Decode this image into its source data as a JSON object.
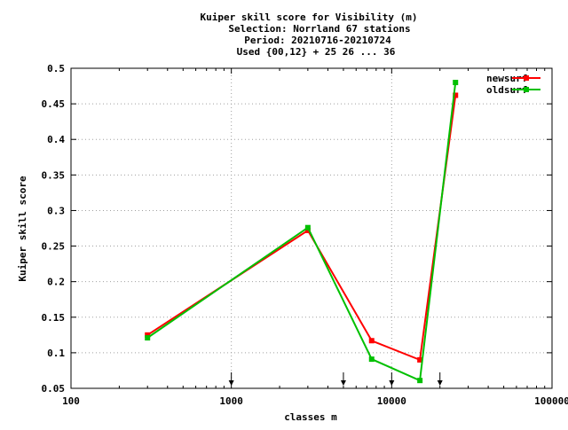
{
  "chart_data": {
    "type": "line",
    "title_lines": [
      "Kuiper skill score  for Visibility (m)",
      "Selection: Norrland     67 stations",
      "Period: 20210716-20210724",
      "Used {00,12} + 25 26 ... 36"
    ],
    "xlabel": "classes m",
    "ylabel": "Kuiper skill score",
    "x_scale": "log",
    "xlim": [
      100,
      100000
    ],
    "ylim": [
      0.05,
      0.5
    ],
    "x_ticks": [
      100,
      1000,
      10000,
      100000
    ],
    "x_tick_labels": [
      "100",
      "1000",
      "10000",
      "100000"
    ],
    "y_ticks": [
      0.05,
      0.1,
      0.15,
      0.2,
      0.25,
      0.3,
      0.35,
      0.4,
      0.45,
      0.5
    ],
    "y_tick_labels": [
      "0.05",
      "0.1",
      "0.15",
      "0.2",
      "0.25",
      "0.3",
      "0.35",
      "0.4",
      "0.45",
      "0.5"
    ],
    "grid": true,
    "legend_position": "top-right",
    "arrow_markers_x": [
      1000,
      5000,
      10000,
      20000
    ],
    "series": [
      {
        "name": "newsurf",
        "color": "#ff0000",
        "x": [
          300,
          3000,
          7500,
          15000,
          25000
        ],
        "y": [
          0.125,
          0.272,
          0.117,
          0.09,
          0.462
        ]
      },
      {
        "name": "oldsurf",
        "color": "#00c000",
        "x": [
          300,
          3000,
          7500,
          15000,
          25000
        ],
        "y": [
          0.121,
          0.276,
          0.091,
          0.061,
          0.48
        ]
      }
    ]
  }
}
